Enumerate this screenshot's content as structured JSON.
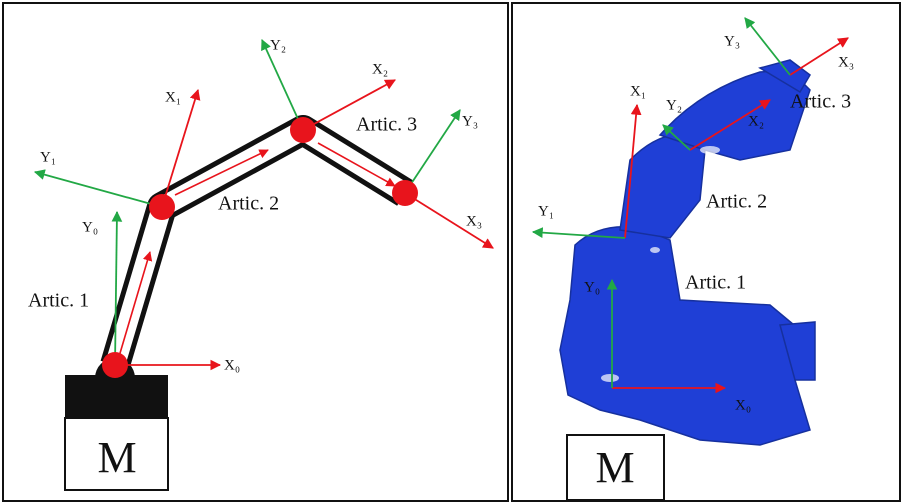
{
  "left": {
    "labels": {
      "artic1": "Artic. 1",
      "artic2": "Artic. 2",
      "artic3": "Artic. 3",
      "motor": "M"
    },
    "axes": {
      "x0": "X₀",
      "y0": "Y₀",
      "x1": "X₁",
      "y1": "Y₁",
      "x2": "X₂",
      "y2": "Y₂",
      "x3": "X₃",
      "y3": "Y₃"
    }
  },
  "right": {
    "labels": {
      "artic1": "Artic. 1",
      "artic2": "Artic. 2",
      "artic3": "Artic. 3",
      "motor": "M"
    },
    "axes": {
      "x0": "X₀",
      "y0": "Y₀",
      "x1": "X₁",
      "y1": "Y₁",
      "x2": "X₂",
      "y2": "Y₂",
      "x3": "X₃",
      "y3": "Y₃"
    }
  }
}
